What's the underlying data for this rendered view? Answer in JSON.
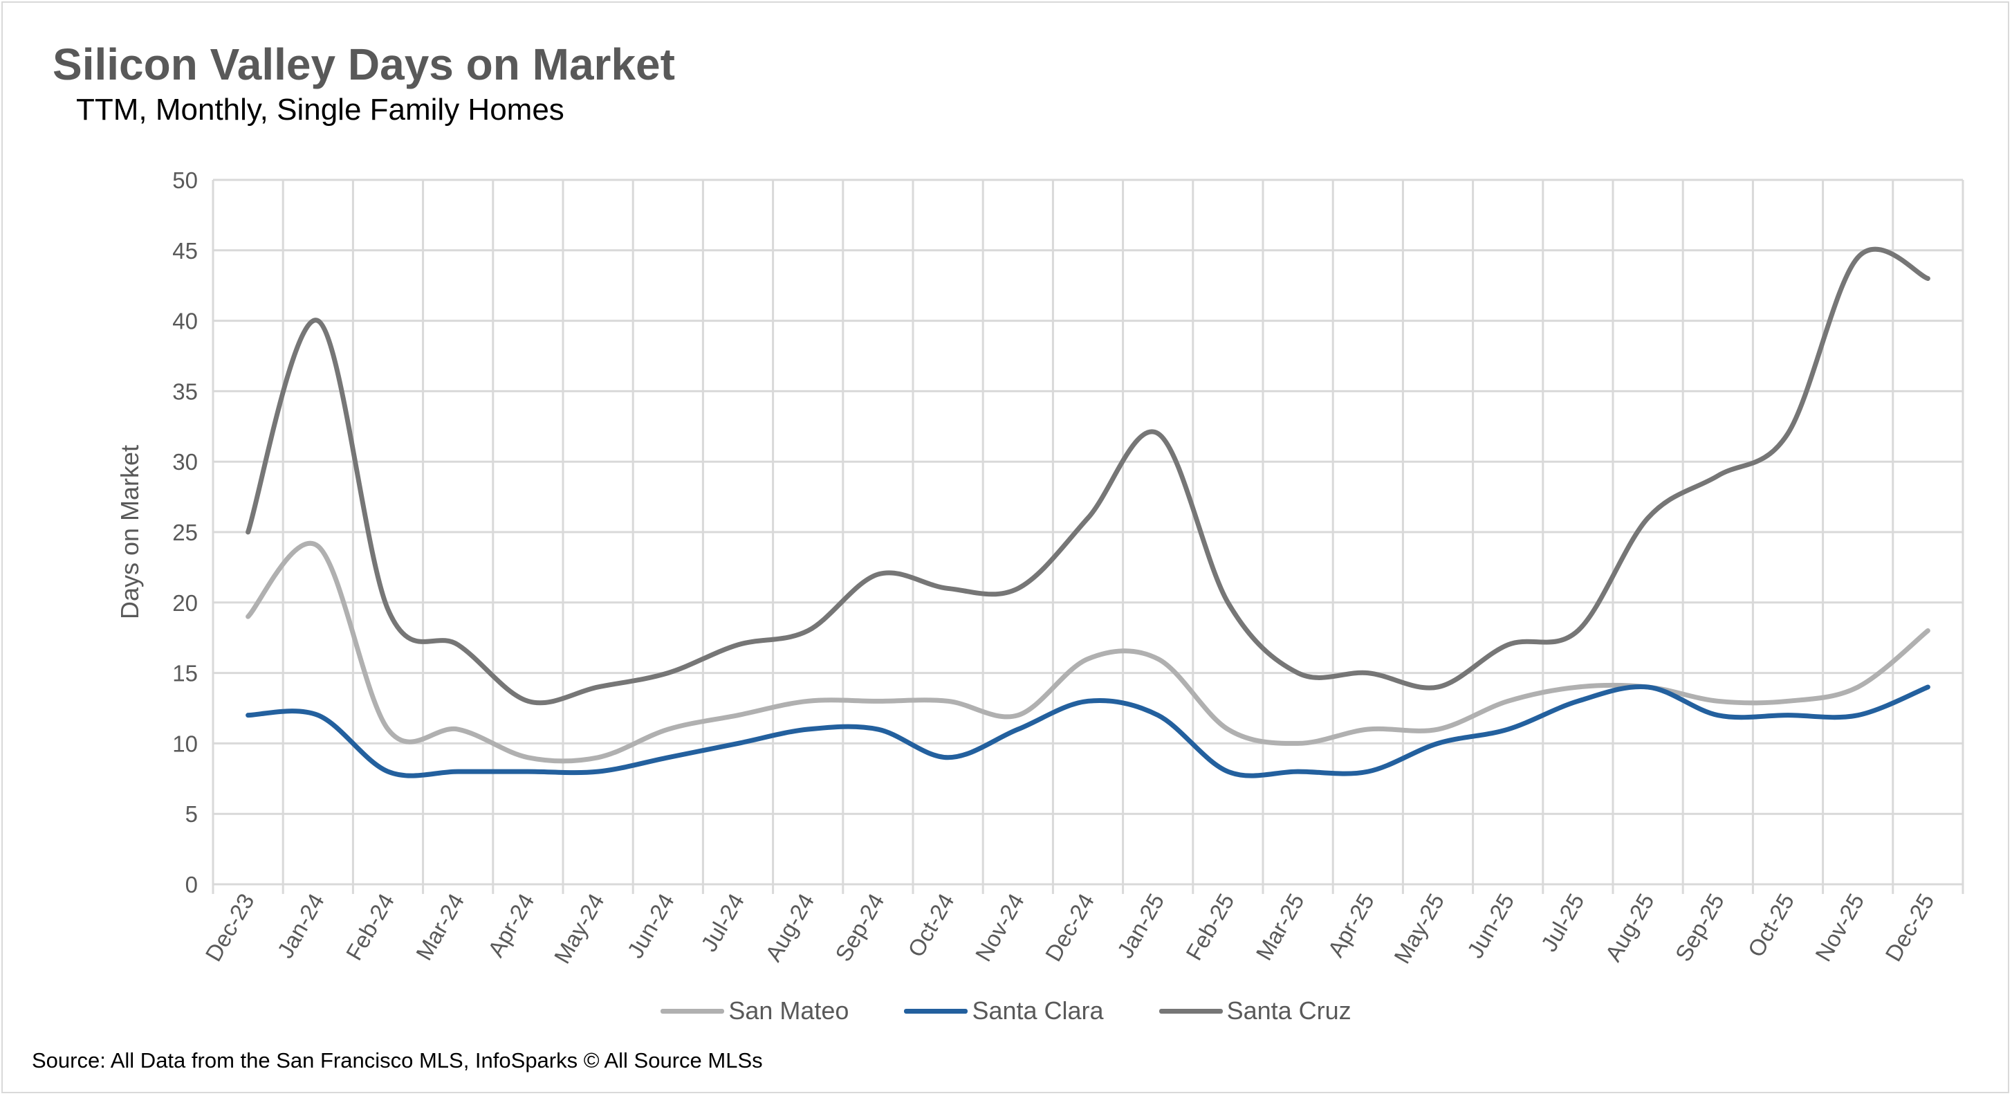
{
  "chart_data": {
    "type": "line",
    "title": "Silicon Valley Days on Market",
    "subtitle": "TTM, Monthly, Single Family Homes",
    "xlabel": "",
    "ylabel": "Days on Market",
    "ylim": [
      0,
      50
    ],
    "yticks": [
      0,
      5,
      10,
      15,
      20,
      25,
      30,
      35,
      40,
      45,
      50
    ],
    "grid": true,
    "smooth": true,
    "legend_position": "bottom",
    "categories": [
      "Dec-23",
      "Jan-24",
      "Feb-24",
      "Mar-24",
      "Apr-24",
      "May-24",
      "Jun-24",
      "Jul-24",
      "Aug-24",
      "Sep-24",
      "Oct-24",
      "Nov-24",
      "Dec-24",
      "Jan-25",
      "Feb-25",
      "Mar-25",
      "Apr-25",
      "May-25",
      "Jun-25",
      "Jul-25",
      "Aug-25",
      "Sep-25",
      "Oct-25",
      "Nov-25",
      "Dec-25"
    ],
    "series": [
      {
        "name": "San Mateo",
        "color": "#b0b0b0",
        "values": [
          19,
          24,
          11,
          11,
          9,
          9,
          11,
          12,
          13,
          13,
          13,
          12,
          16,
          16,
          11,
          10,
          11,
          11,
          13,
          14,
          14,
          13,
          13,
          14,
          18
        ]
      },
      {
        "name": "Santa Clara",
        "color": "#23609e",
        "values": [
          12,
          12,
          8,
          8,
          8,
          8,
          9,
          10,
          11,
          11,
          9,
          11,
          13,
          12,
          8,
          8,
          8,
          10,
          11,
          13,
          14,
          12,
          12,
          12,
          14
        ]
      },
      {
        "name": "Santa Cruz",
        "color": "#767676",
        "values": [
          25,
          40,
          19.5,
          17,
          13,
          14,
          15,
          17,
          18,
          22,
          21,
          21,
          26,
          32,
          20,
          15,
          15,
          14,
          17,
          18,
          26,
          29,
          32,
          44.5,
          43
        ]
      }
    ]
  },
  "source": "Source: All Data from the San Francisco MLS, InfoSparks © All Source MLSs"
}
